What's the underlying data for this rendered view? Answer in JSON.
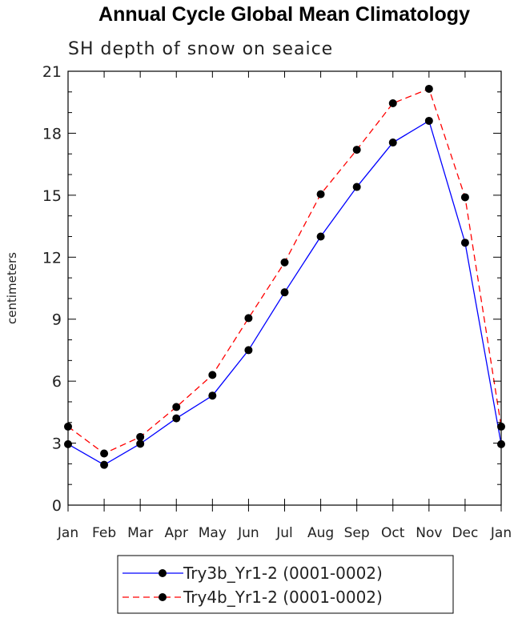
{
  "chart_data": {
    "type": "line",
    "title": "Annual Cycle Global Mean Climatology",
    "subtitle": "SH depth of snow on seaice",
    "xlabel": "",
    "ylabel": "centimeters",
    "categories": [
      "Jan",
      "Feb",
      "Mar",
      "Apr",
      "May",
      "Jun",
      "Jul",
      "Aug",
      "Sep",
      "Oct",
      "Nov",
      "Dec",
      "Jan"
    ],
    "ylim": [
      0,
      21
    ],
    "yticks": [
      0,
      3,
      6,
      9,
      12,
      15,
      18,
      21
    ],
    "ytick_labels": [
      "0",
      "3",
      "6",
      "9",
      "12",
      "15",
      "18",
      "21"
    ],
    "series": [
      {
        "name": "Try3b_Yr1-2 (0001-0002)",
        "color": "#0000ff",
        "dash": "solid",
        "values": [
          2.95,
          1.95,
          2.97,
          4.2,
          5.3,
          7.5,
          10.3,
          13.0,
          15.4,
          17.55,
          18.6,
          12.7,
          2.95
        ]
      },
      {
        "name": "Try4b_Yr1-2 (0001-0002)",
        "color": "#ff0000",
        "dash": "dashed",
        "values": [
          3.8,
          2.5,
          3.3,
          4.75,
          6.3,
          9.05,
          11.75,
          15.05,
          17.2,
          19.45,
          20.15,
          14.9,
          3.8
        ]
      }
    ],
    "legend_position": "bottom-center",
    "marker": "filled-circle",
    "marker_color": "#000000"
  }
}
